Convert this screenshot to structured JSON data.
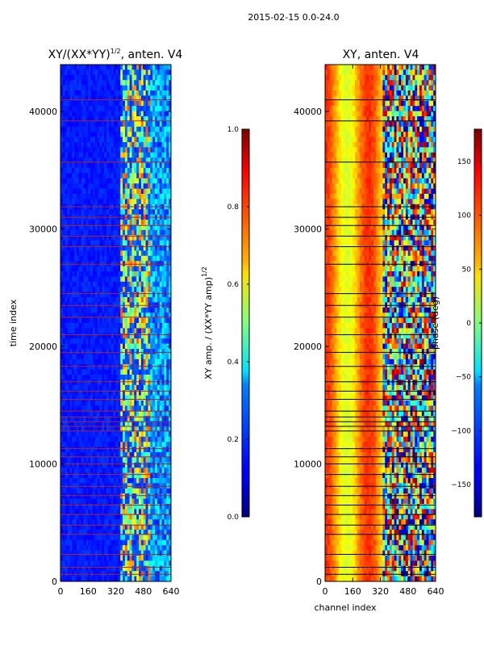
{
  "suptitle": "2015-02-15 0.0-24.0",
  "chart_data": [
    {
      "type": "heatmap",
      "title": "XY/(XX*YY)",
      "title_sup": "1/2",
      "title_suffix": ", anten. V4",
      "xlabel": "",
      "ylabel": "time index",
      "xticks": [
        0,
        160,
        320,
        480,
        640
      ],
      "yticks": [
        0,
        10000,
        20000,
        30000,
        40000
      ],
      "xlim": [
        0,
        640
      ],
      "ylim": [
        0,
        44000
      ],
      "colorbar": {
        "label": "XY amp. / (XX*YY amp)",
        "label_sup": "1/2",
        "ticks": [
          "0.0",
          "0.2",
          "0.4",
          "0.6",
          "0.8",
          "1.0"
        ],
        "range": [
          0,
          1
        ],
        "colormap": "jet"
      },
      "flag_line_color": "#b22222",
      "flag_rows": [
        600,
        1200,
        2300,
        4000,
        4800,
        5700,
        6500,
        7300,
        8100,
        9100,
        10000,
        10600,
        11300,
        12800,
        13200,
        13600,
        14000,
        14500,
        15500,
        16200,
        17000,
        18300,
        19500,
        21000,
        22500,
        23500,
        24500,
        27000,
        28500,
        29400,
        30300,
        31000,
        31900,
        35700,
        39200,
        41000
      ]
    },
    {
      "type": "heatmap",
      "title": "XY, anten. V4",
      "xlabel": "channel index",
      "ylabel": "",
      "xticks": [
        0,
        160,
        320,
        480,
        640
      ],
      "yticks": [
        0,
        10000,
        20000,
        30000,
        40000
      ],
      "xlim": [
        0,
        640
      ],
      "ylim": [
        0,
        44000
      ],
      "colorbar": {
        "label": "phase (deg)",
        "ticks": [
          "−150",
          "−100",
          "−50",
          "0",
          "50",
          "100",
          "150"
        ],
        "range": [
          -180,
          180
        ],
        "colormap": "jet"
      },
      "flag_line_color": "#000000",
      "flag_rows": [
        600,
        1200,
        2300,
        4000,
        4800,
        5700,
        6500,
        7300,
        8100,
        9100,
        10000,
        10600,
        11300,
        12800,
        13200,
        13600,
        14000,
        14500,
        15500,
        16200,
        17000,
        18300,
        19500,
        21000,
        22500,
        23500,
        24500,
        27000,
        28500,
        29400,
        30300,
        31000,
        31900,
        35700,
        39200,
        41000
      ]
    }
  ]
}
